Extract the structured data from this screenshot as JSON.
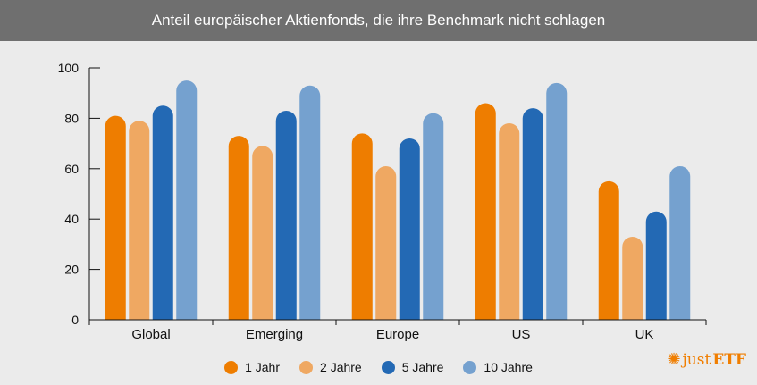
{
  "chart_data": {
    "type": "bar",
    "title": "Anteil europäischer Aktienfonds, die ihre Benchmark nicht schlagen",
    "categories": [
      "Global",
      "Emerging",
      "Europe",
      "US",
      "UK"
    ],
    "series": [
      {
        "name": "1 Jahr",
        "color": "#ee7d00",
        "values": [
          81,
          73,
          74,
          86,
          55
        ]
      },
      {
        "name": "2 Jahre",
        "color": "#efa862",
        "values": [
          79,
          69,
          61,
          78,
          33
        ]
      },
      {
        "name": "5 Jahre",
        "color": "#2369b4",
        "values": [
          85,
          83,
          72,
          84,
          43
        ]
      },
      {
        "name": "10 Jahre",
        "color": "#75a1cf",
        "values": [
          95,
          93,
          82,
          94,
          61
        ]
      }
    ],
    "yticks": [
      "0",
      "20",
      "40",
      "60",
      "80",
      "100"
    ],
    "ylim": [
      0,
      100
    ],
    "xlabel": "",
    "ylabel": "",
    "grid": false,
    "legend_position": "bottom"
  },
  "branding": {
    "logo_icon": "flame-icon",
    "logo_prefix": "just",
    "logo_suffix": "ETF"
  }
}
